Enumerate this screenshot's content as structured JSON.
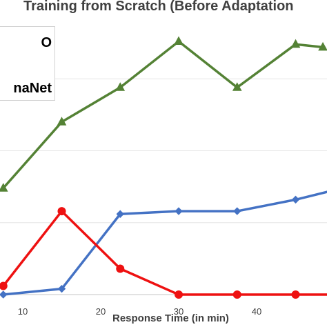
{
  "chart_data": {
    "type": "line",
    "title": "Training from Scratch (Before Adaptation",
    "xlabel": "Response Time (in min)",
    "ylabel": "",
    "x_ticks": [
      10,
      20,
      30,
      40
    ],
    "xlim": [
      5.5,
      49.5
    ],
    "ylim": [
      0,
      1.0
    ],
    "grid": "horizontal",
    "legend": {
      "placement": "top-left",
      "entries": [
        "O",
        "naNet"
      ]
    },
    "series": [
      {
        "color": "#548235",
        "marker": "triangle",
        "x": [
          7.5,
          15,
          22.5,
          30,
          37.5,
          45,
          48.5
        ],
        "y": [
          0.37,
          0.6,
          0.72,
          0.88,
          0.72,
          0.87,
          0.86
        ]
      },
      {
        "color": "#4472c4",
        "marker": "diamond",
        "x": [
          7.5,
          15,
          22.5,
          30,
          37.5,
          45,
          49.5
        ],
        "y": [
          0.0,
          0.02,
          0.28,
          0.29,
          0.29,
          0.33,
          0.36
        ]
      },
      {
        "color": "#ee1111",
        "marker": "circle",
        "x": [
          7.5,
          15,
          22.5,
          30,
          37.5,
          45,
          49.5
        ],
        "y": [
          0.03,
          0.29,
          0.09,
          0.0,
          0.0,
          0.0,
          0.0
        ]
      }
    ]
  },
  "colors": {
    "axis": "#d9d9d9",
    "text": "#404040"
  }
}
